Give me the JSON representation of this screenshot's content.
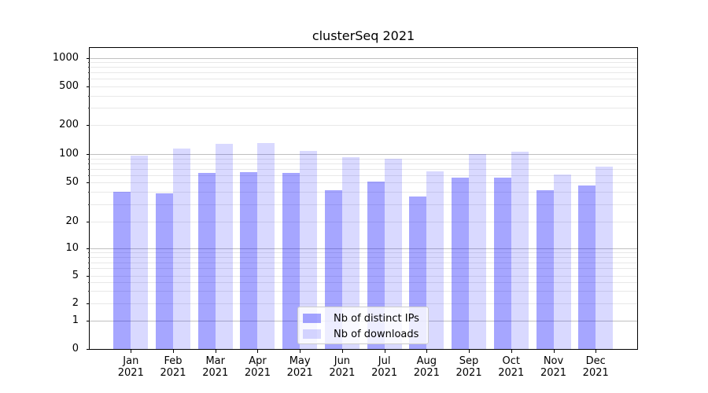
{
  "chart_data": {
    "type": "bar",
    "title": "clusterSeq 2021",
    "categories": [
      "Jan 2021",
      "Feb 2021",
      "Mar 2021",
      "Apr 2021",
      "May 2021",
      "Jun 2021",
      "Jul 2021",
      "Aug 2021",
      "Sep 2021",
      "Oct 2021",
      "Nov 2021",
      "Dec 2021"
    ],
    "x_tick_months": [
      "Jan",
      "Feb",
      "Mar",
      "Apr",
      "May",
      "Jun",
      "Jul",
      "Aug",
      "Sep",
      "Oct",
      "Nov",
      "Dec"
    ],
    "x_tick_year": "2021",
    "series": [
      {
        "name": "Nb of distinct IPs",
        "values": [
          40,
          39,
          63,
          65,
          63,
          42,
          51,
          36,
          57,
          56,
          42,
          47
        ],
        "color": "rgba(0,0,255,0.35)",
        "color_on_white": "#a9a9f7"
      },
      {
        "name": "Nb of downloads",
        "values": [
          96,
          114,
          127,
          130,
          108,
          93,
          90,
          66,
          100,
          106,
          61,
          74
        ],
        "color": "rgba(0,0,255,0.15)",
        "color_on_white": "#d9d9f8"
      }
    ],
    "y_scale": "symlog",
    "ylim": [
      0,
      1270
    ],
    "y_ticks": [
      0,
      1,
      2,
      5,
      10,
      20,
      50,
      100,
      200,
      500,
      1000
    ],
    "y_major_gridlines": [
      1,
      10,
      100,
      1000
    ],
    "y_minor_gridlines": [
      2,
      3,
      4,
      5,
      6,
      7,
      8,
      9,
      20,
      30,
      40,
      50,
      60,
      70,
      80,
      90,
      200,
      300,
      400,
      500,
      600,
      700,
      800,
      900
    ],
    "grid": "both",
    "legend": {
      "position": "lower center",
      "items": [
        "Nb of distinct IPs",
        "Nb of downloads"
      ]
    }
  },
  "colors": {
    "background": "#ffffff",
    "spine": "#000000",
    "grid_major": "#c0c0c0",
    "grid_minor": "#e8e8e8",
    "legend_border": "#cccccc",
    "legend_bg": "rgba(255,255,255,0.8)",
    "text": "#000000"
  }
}
